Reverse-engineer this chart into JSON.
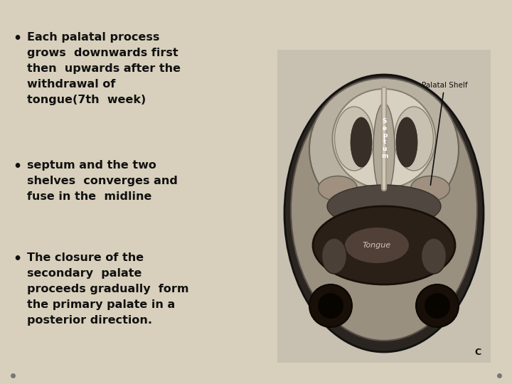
{
  "background_color": "#d8d0bc",
  "bullets": [
    {
      "bullet": "•",
      "lines": [
        "Each palatal process",
        "grows  downwards first",
        "then  upwards after the",
        "withdrawal of",
        "tongue(7th  week)"
      ]
    },
    {
      "bullet": "•",
      "lines": [
        "septum and the two",
        "shelves  converges and",
        "fuse in the  midline"
      ]
    },
    {
      "bullet": "•",
      "lines": [
        "The closure of the",
        "secondary  palate",
        "proceeds gradually  form",
        "the primary palate in a",
        "posterior direction."
      ]
    }
  ],
  "text_color": "#111111",
  "font_size": 11.5,
  "small_dot_color": "#777777",
  "image_label": "Palatal Shelf",
  "tongue_label": "Tongue",
  "septum_label": "S\ne\np\nt\nu\nm",
  "letter_c": "C"
}
